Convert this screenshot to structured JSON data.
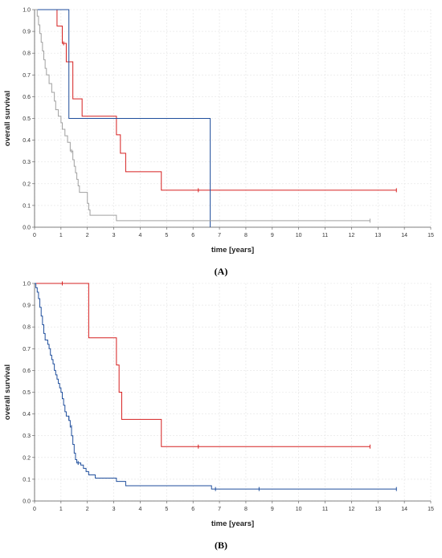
{
  "chart_data": [
    {
      "type": "line",
      "step": true,
      "panel_label": "(A)",
      "xlabel": "time [years]",
      "ylabel": "overall survival",
      "xlim": [
        0,
        15
      ],
      "ylim": [
        0,
        1
      ],
      "x_ticks": [
        "0",
        "1",
        "2",
        "3",
        "4",
        "5",
        "6",
        "7",
        "8",
        "9",
        "10",
        "11",
        "12",
        "13",
        "14",
        "15"
      ],
      "y_ticks": [
        "0.0",
        "0.1",
        "0.2",
        "0.3",
        "0.4",
        "0.5",
        "0.6",
        "0.7",
        "0.8",
        "0.9",
        "1.0"
      ],
      "grid": true,
      "series": [
        {
          "color": "#d62020",
          "points": [
            [
              0,
              1.0
            ],
            [
              0.85,
              1.0
            ],
            [
              0.85,
              0.925
            ],
            [
              1.05,
              0.925
            ],
            [
              1.05,
              0.845
            ],
            [
              1.2,
              0.845
            ],
            [
              1.2,
              0.76
            ],
            [
              1.45,
              0.76
            ],
            [
              1.45,
              0.59
            ],
            [
              1.8,
              0.59
            ],
            [
              1.8,
              0.51
            ],
            [
              3.1,
              0.51
            ],
            [
              3.1,
              0.425
            ],
            [
              3.25,
              0.425
            ],
            [
              3.25,
              0.34
            ],
            [
              3.45,
              0.34
            ],
            [
              3.45,
              0.255
            ],
            [
              4.8,
              0.255
            ],
            [
              4.8,
              0.17
            ],
            [
              13.7,
              0.17
            ]
          ],
          "censored": [
            [
              1.1,
              0.845
            ],
            [
              6.2,
              0.17
            ],
            [
              13.7,
              0.17
            ]
          ]
        },
        {
          "color": "#1f4e9c",
          "points": [
            [
              0,
              1.0
            ],
            [
              1.3,
              1.0
            ],
            [
              1.3,
              0.5
            ],
            [
              6.65,
              0.5
            ],
            [
              6.65,
              0.0
            ]
          ],
          "censored": []
        },
        {
          "color": "#a0a0a0",
          "points": [
            [
              0,
              1.0
            ],
            [
              0.1,
              1.0
            ],
            [
              0.1,
              0.97
            ],
            [
              0.15,
              0.97
            ],
            [
              0.15,
              0.93
            ],
            [
              0.2,
              0.93
            ],
            [
              0.2,
              0.89
            ],
            [
              0.25,
              0.89
            ],
            [
              0.25,
              0.85
            ],
            [
              0.3,
              0.85
            ],
            [
              0.3,
              0.81
            ],
            [
              0.35,
              0.81
            ],
            [
              0.35,
              0.77
            ],
            [
              0.4,
              0.77
            ],
            [
              0.4,
              0.73
            ],
            [
              0.45,
              0.73
            ],
            [
              0.45,
              0.7
            ],
            [
              0.55,
              0.7
            ],
            [
              0.55,
              0.66
            ],
            [
              0.65,
              0.66
            ],
            [
              0.65,
              0.62
            ],
            [
              0.75,
              0.62
            ],
            [
              0.75,
              0.58
            ],
            [
              0.8,
              0.58
            ],
            [
              0.8,
              0.54
            ],
            [
              0.9,
              0.54
            ],
            [
              0.9,
              0.51
            ],
            [
              1.0,
              0.51
            ],
            [
              1.0,
              0.48
            ],
            [
              1.05,
              0.48
            ],
            [
              1.05,
              0.45
            ],
            [
              1.15,
              0.45
            ],
            [
              1.15,
              0.42
            ],
            [
              1.25,
              0.42
            ],
            [
              1.25,
              0.39
            ],
            [
              1.35,
              0.39
            ],
            [
              1.35,
              0.35
            ],
            [
              1.45,
              0.35
            ],
            [
              1.45,
              0.31
            ],
            [
              1.5,
              0.31
            ],
            [
              1.5,
              0.28
            ],
            [
              1.55,
              0.28
            ],
            [
              1.55,
              0.25
            ],
            [
              1.6,
              0.25
            ],
            [
              1.6,
              0.22
            ],
            [
              1.65,
              0.22
            ],
            [
              1.65,
              0.19
            ],
            [
              1.7,
              0.19
            ],
            [
              1.7,
              0.16
            ],
            [
              2.0,
              0.16
            ],
            [
              2.0,
              0.11
            ],
            [
              2.05,
              0.11
            ],
            [
              2.05,
              0.08
            ],
            [
              2.1,
              0.08
            ],
            [
              2.1,
              0.055
            ],
            [
              3.1,
              0.055
            ],
            [
              3.1,
              0.03
            ],
            [
              12.7,
              0.03
            ]
          ],
          "censored": [
            [
              1.4,
              0.35
            ],
            [
              12.7,
              0.03
            ]
          ]
        }
      ]
    },
    {
      "type": "line",
      "step": true,
      "panel_label": "(B)",
      "xlabel": "time [years]",
      "ylabel": "overall survival",
      "xlim": [
        0,
        15
      ],
      "ylim": [
        0,
        1
      ],
      "x_ticks": [
        "0",
        "1",
        "2",
        "3",
        "4",
        "5",
        "6",
        "7",
        "8",
        "9",
        "10",
        "11",
        "12",
        "13",
        "14",
        "15"
      ],
      "y_ticks": [
        "0.0",
        "0.1",
        "0.2",
        "0.3",
        "0.4",
        "0.5",
        "0.6",
        "0.7",
        "0.8",
        "0.9",
        "1.0"
      ],
      "grid": true,
      "series": [
        {
          "color": "#d62020",
          "points": [
            [
              0,
              1.0
            ],
            [
              2.05,
              1.0
            ],
            [
              2.05,
              0.75
            ],
            [
              3.1,
              0.75
            ],
            [
              3.1,
              0.625
            ],
            [
              3.2,
              0.625
            ],
            [
              3.2,
              0.5
            ],
            [
              3.3,
              0.5
            ],
            [
              3.3,
              0.375
            ],
            [
              4.8,
              0.375
            ],
            [
              4.8,
              0.25
            ],
            [
              12.7,
              0.25
            ]
          ],
          "censored": [
            [
              1.05,
              1.0
            ],
            [
              6.2,
              0.25
            ],
            [
              12.7,
              0.25
            ]
          ]
        },
        {
          "color": "#1f4e9c",
          "points": [
            [
              0,
              1.0
            ],
            [
              0.05,
              1.0
            ],
            [
              0.05,
              0.98
            ],
            [
              0.1,
              0.98
            ],
            [
              0.1,
              0.96
            ],
            [
              0.15,
              0.96
            ],
            [
              0.15,
              0.93
            ],
            [
              0.2,
              0.93
            ],
            [
              0.2,
              0.89
            ],
            [
              0.25,
              0.89
            ],
            [
              0.25,
              0.85
            ],
            [
              0.3,
              0.85
            ],
            [
              0.3,
              0.81
            ],
            [
              0.35,
              0.81
            ],
            [
              0.35,
              0.77
            ],
            [
              0.4,
              0.77
            ],
            [
              0.4,
              0.74
            ],
            [
              0.5,
              0.74
            ],
            [
              0.5,
              0.72
            ],
            [
              0.55,
              0.72
            ],
            [
              0.55,
              0.7
            ],
            [
              0.6,
              0.7
            ],
            [
              0.6,
              0.67
            ],
            [
              0.65,
              0.67
            ],
            [
              0.65,
              0.65
            ],
            [
              0.7,
              0.65
            ],
            [
              0.7,
              0.63
            ],
            [
              0.75,
              0.63
            ],
            [
              0.75,
              0.6
            ],
            [
              0.8,
              0.6
            ],
            [
              0.8,
              0.58
            ],
            [
              0.85,
              0.58
            ],
            [
              0.85,
              0.56
            ],
            [
              0.9,
              0.56
            ],
            [
              0.9,
              0.54
            ],
            [
              0.95,
              0.54
            ],
            [
              0.95,
              0.52
            ],
            [
              1.0,
              0.52
            ],
            [
              1.0,
              0.5
            ],
            [
              1.05,
              0.5
            ],
            [
              1.05,
              0.47
            ],
            [
              1.1,
              0.47
            ],
            [
              1.1,
              0.44
            ],
            [
              1.15,
              0.44
            ],
            [
              1.15,
              0.41
            ],
            [
              1.2,
              0.41
            ],
            [
              1.2,
              0.39
            ],
            [
              1.3,
              0.39
            ],
            [
              1.3,
              0.37
            ],
            [
              1.35,
              0.37
            ],
            [
              1.35,
              0.34
            ],
            [
              1.4,
              0.34
            ],
            [
              1.4,
              0.3
            ],
            [
              1.45,
              0.3
            ],
            [
              1.45,
              0.26
            ],
            [
              1.5,
              0.26
            ],
            [
              1.5,
              0.22
            ],
            [
              1.55,
              0.22
            ],
            [
              1.55,
              0.19
            ],
            [
              1.6,
              0.19
            ],
            [
              1.6,
              0.175
            ],
            [
              1.75,
              0.175
            ],
            [
              1.75,
              0.165
            ],
            [
              1.85,
              0.165
            ],
            [
              1.85,
              0.15
            ],
            [
              1.95,
              0.15
            ],
            [
              1.95,
              0.135
            ],
            [
              2.05,
              0.135
            ],
            [
              2.05,
              0.12
            ],
            [
              2.3,
              0.12
            ],
            [
              2.3,
              0.105
            ],
            [
              3.1,
              0.105
            ],
            [
              3.1,
              0.09
            ],
            [
              3.45,
              0.09
            ],
            [
              3.45,
              0.07
            ],
            [
              6.7,
              0.07
            ],
            [
              6.7,
              0.055
            ],
            [
              13.7,
              0.055
            ]
          ],
          "censored": [
            [
              1.3,
              0.38
            ],
            [
              1.4,
              0.34
            ],
            [
              1.65,
              0.175
            ],
            [
              6.85,
              0.055
            ],
            [
              8.5,
              0.055
            ],
            [
              13.7,
              0.055
            ]
          ]
        }
      ]
    }
  ]
}
